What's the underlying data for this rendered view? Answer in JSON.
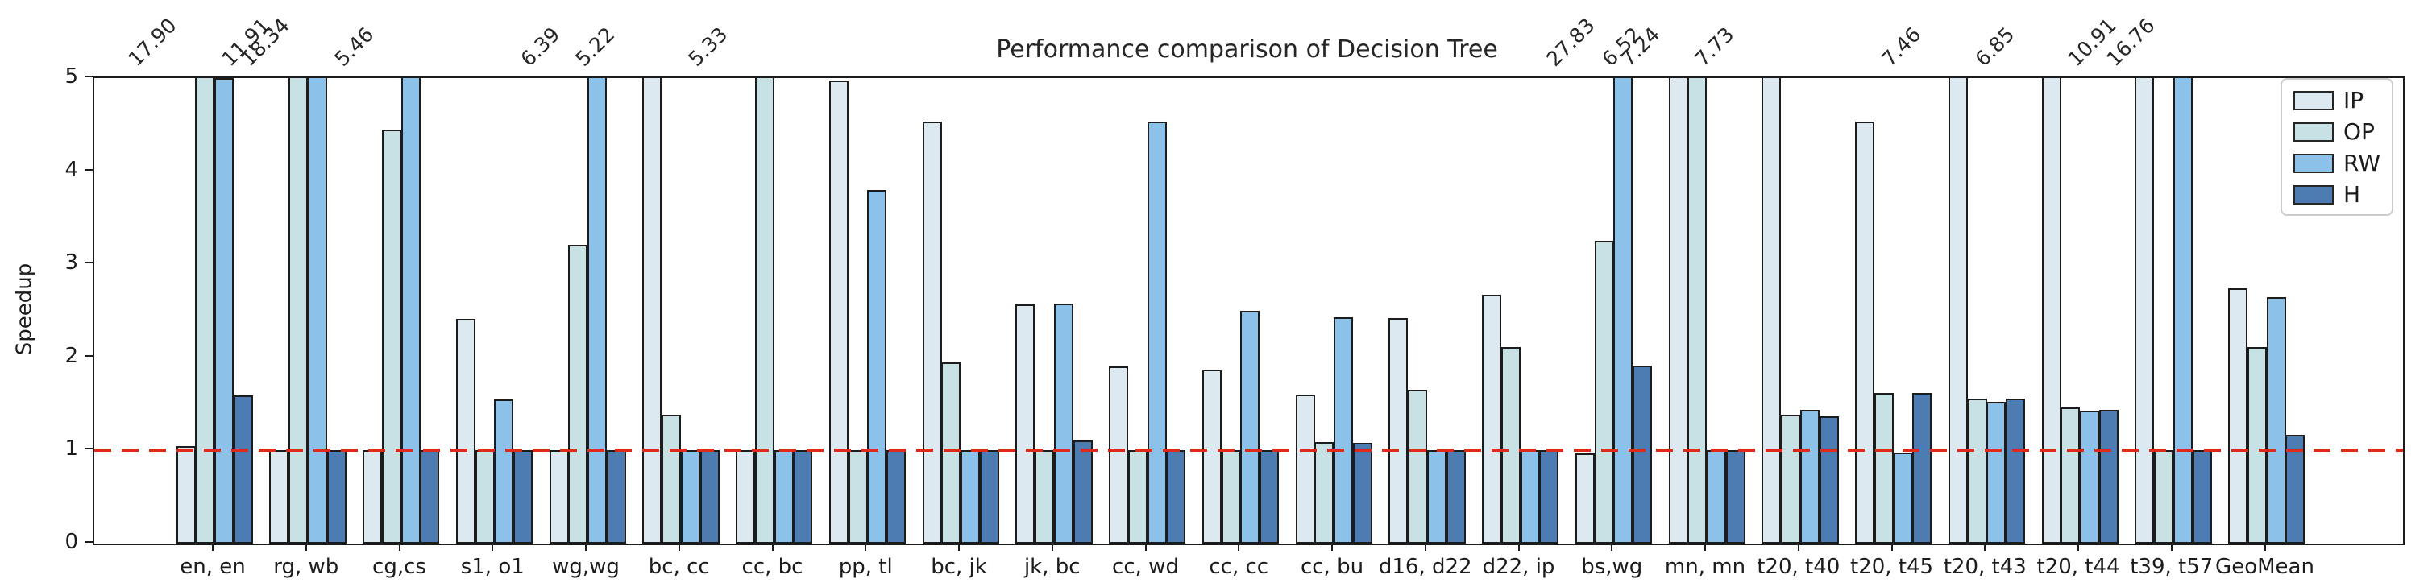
{
  "chart_data": {
    "type": "bar",
    "title": "Performance comparison of Decision Tree",
    "xlabel": "",
    "ylabel": "Speedup",
    "ylim": [
      0,
      5
    ],
    "yticks": [
      0,
      1,
      2,
      3,
      4,
      5
    ],
    "grid": false,
    "reference_line": {
      "value": 1.0,
      "color": "#e0291d",
      "style": "dashed"
    },
    "legend_position": "upper right",
    "edge_color": "#1c1c1c",
    "categories": [
      "en, en",
      "rg, wb",
      "cg,cs",
      "s1, o1",
      "wg,wg",
      "bc, cc",
      "cc, bc",
      "pp, tl",
      "bc, jk",
      "jk, bc",
      "cc, wd",
      "cc, cc",
      "cc, bu",
      "d16, d22",
      "d22, ip",
      "bs,wg",
      "mn, mn",
      "t20, t40",
      "t20, t45",
      "t20, t43",
      "t20, t44",
      "t39, t57",
      "GeoMean"
    ],
    "series": [
      {
        "name": "IP",
        "color": "#dde9f1",
        "values": [
          1.05,
          1.0,
          1.0,
          2.41,
          1.0,
          5.22,
          1.0,
          4.97,
          4.53,
          2.57,
          1.9,
          1.87,
          1.6,
          2.42,
          2.67,
          0.97,
          6.52,
          7.73,
          4.53,
          7.46,
          6.85,
          10.91,
          2.74
        ]
      },
      {
        "name": "OP",
        "color": "#c8e1e4",
        "values": [
          17.9,
          11.91,
          4.45,
          1.0,
          3.21,
          1.38,
          5.33,
          1.0,
          1.95,
          1.0,
          1.0,
          1.0,
          1.09,
          1.65,
          2.11,
          3.25,
          7.24,
          1.38,
          1.62,
          1.56,
          1.46,
          1.0,
          2.11
        ]
      },
      {
        "name": "RW",
        "color": "#8cc1ea",
        "values": [
          5.0,
          18.34,
          5.46,
          1.55,
          6.39,
          1.0,
          1.0,
          3.8,
          1.0,
          2.58,
          4.53,
          2.5,
          2.43,
          1.0,
          1.0,
          27.83,
          1.0,
          1.44,
          0.98,
          1.52,
          1.43,
          16.76,
          2.65
        ]
      },
      {
        "name": "H",
        "color": "#4d7cb2",
        "values": [
          1.59,
          1.0,
          1.0,
          1.0,
          1.0,
          1.0,
          1.0,
          1.0,
          1.0,
          1.11,
          1.0,
          1.0,
          1.08,
          1.0,
          1.0,
          1.91,
          1.0,
          1.37,
          1.62,
          1.56,
          1.44,
          1.0,
          1.17
        ]
      }
    ],
    "annotations": [
      {
        "category_index": 0,
        "series": "OP",
        "text": "17.90"
      },
      {
        "category_index": 1,
        "series": "OP",
        "text": "11.91"
      },
      {
        "category_index": 1,
        "series": "RW",
        "text": "18.34"
      },
      {
        "category_index": 2,
        "series": "RW",
        "text": "5.46"
      },
      {
        "category_index": 4,
        "series": "RW",
        "text": "6.39"
      },
      {
        "category_index": 5,
        "series": "IP",
        "text": "5.22"
      },
      {
        "category_index": 6,
        "series": "OP",
        "text": "5.33"
      },
      {
        "category_index": 15,
        "series": "RW",
        "text": "27.83"
      },
      {
        "category_index": 16,
        "series": "IP",
        "text": "6.52"
      },
      {
        "category_index": 16,
        "series": "OP",
        "text": "7.24"
      },
      {
        "category_index": 17,
        "series": "IP",
        "text": "7.73"
      },
      {
        "category_index": 19,
        "series": "IP",
        "text": "7.46"
      },
      {
        "category_index": 20,
        "series": "IP",
        "text": "6.85"
      },
      {
        "category_index": 21,
        "series": "IP",
        "text": "10.91"
      },
      {
        "category_index": 21,
        "series": "RW",
        "text": "16.76"
      }
    ]
  }
}
